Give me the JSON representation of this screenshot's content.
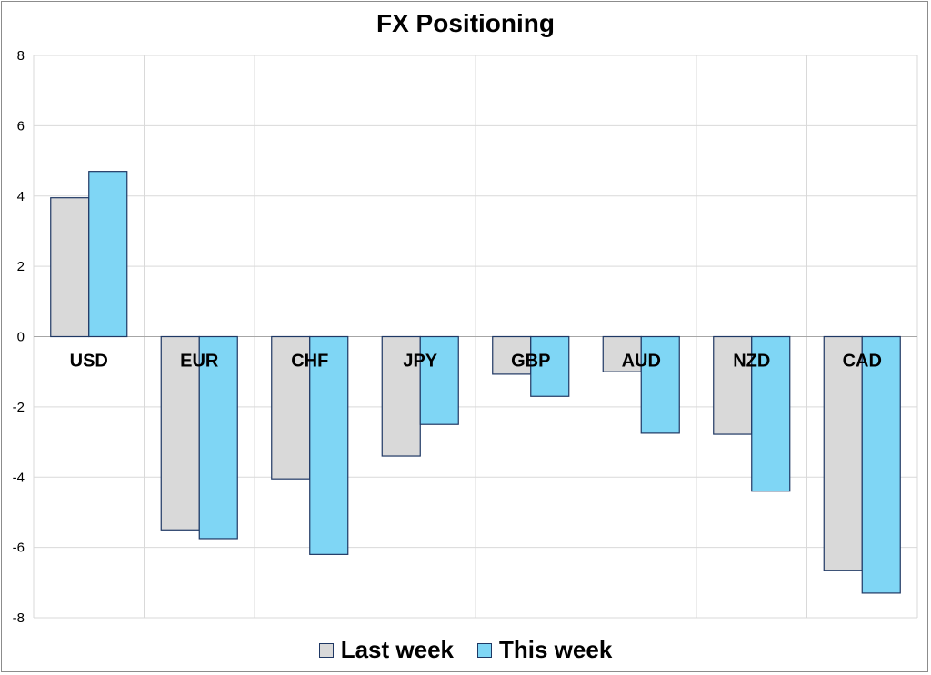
{
  "chart_data": {
    "type": "bar",
    "title": "FX Positioning",
    "xlabel": "",
    "ylabel": "",
    "categories": [
      "USD",
      "EUR",
      "CHF",
      "JPY",
      "GBP",
      "AUD",
      "NZD",
      "CAD"
    ],
    "series": [
      {
        "name": "Last week",
        "color": "#d9d9d9",
        "values": [
          3.95,
          -5.5,
          -4.05,
          -3.4,
          -1.07,
          -1.0,
          -2.78,
          -6.65
        ]
      },
      {
        "name": "This week",
        "color": "#7fd6f5",
        "values": [
          4.7,
          -5.75,
          -6.2,
          -2.5,
          -1.7,
          -2.75,
          -4.4,
          -7.3
        ]
      }
    ],
    "ylim": [
      -8,
      8
    ],
    "yticks": [
      "8",
      "6",
      "4",
      "2",
      "0",
      "-2",
      "-4",
      "-6",
      "-8"
    ],
    "grid": true,
    "legend_position": "bottom",
    "bar_border_color": "#1f3864"
  }
}
